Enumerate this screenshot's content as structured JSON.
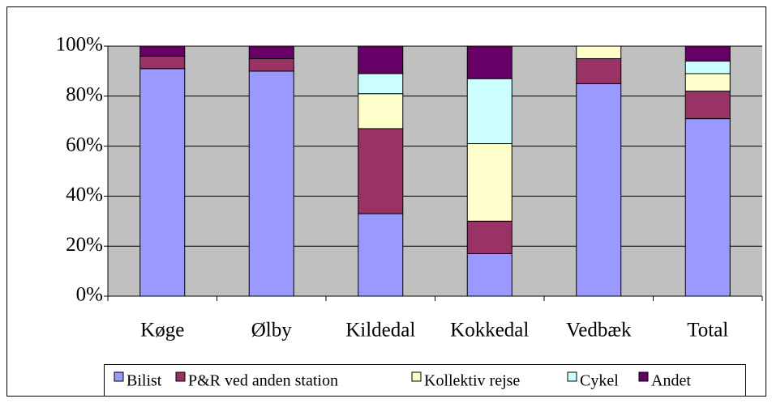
{
  "chart_data": {
    "type": "stacked_bar",
    "categories": [
      "Køge",
      "Ølby",
      "Kildedal",
      "Kokkedal",
      "Vedbæk",
      "Total"
    ],
    "series": [
      {
        "name": "Bilist",
        "color": "#9999ff",
        "values": [
          91,
          90,
          33,
          17,
          85,
          71
        ]
      },
      {
        "name": "P&R ved anden station",
        "color": "#993366",
        "values": [
          5,
          5,
          34,
          13,
          10,
          11
        ]
      },
      {
        "name": "Kollektiv rejse",
        "color": "#ffffcc",
        "values": [
          0,
          0,
          14,
          31,
          5,
          7
        ]
      },
      {
        "name": "Cykel",
        "color": "#ccffff",
        "values": [
          0,
          0,
          8,
          26,
          0,
          5
        ]
      },
      {
        "name": "Andet",
        "color": "#660066",
        "values": [
          4,
          5,
          11,
          13,
          0,
          6
        ]
      }
    ],
    "ylim": [
      0,
      100
    ],
    "yticks": [
      {
        "value": 0,
        "label": "0%"
      },
      {
        "value": 20,
        "label": "20%"
      },
      {
        "value": 40,
        "label": "40%"
      },
      {
        "value": 60,
        "label": "60%"
      },
      {
        "value": 80,
        "label": "80%"
      },
      {
        "value": 100,
        "label": "100%"
      }
    ],
    "grid": true,
    "legend": "bottom"
  }
}
